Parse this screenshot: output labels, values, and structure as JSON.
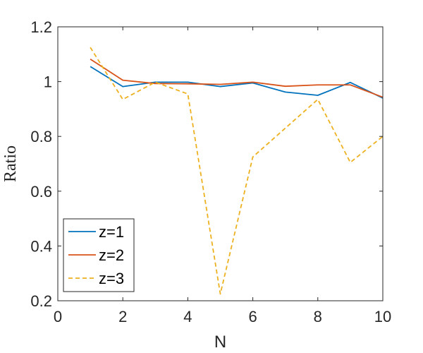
{
  "chart_data": {
    "type": "line",
    "xlabel": "N",
    "ylabel": "Ratio",
    "xlim": [
      0,
      10
    ],
    "ylim": [
      0.2,
      1.2
    ],
    "xticks": [
      0,
      2,
      4,
      6,
      8,
      10
    ],
    "yticks": [
      0.2,
      0.4,
      0.6,
      0.8,
      1,
      1.2
    ],
    "xtick_labels": [
      "0",
      "2",
      "4",
      "6",
      "8",
      "10"
    ],
    "ytick_labels": [
      "0.2",
      "0.4",
      "0.6",
      "0.8",
      "1",
      "1.2"
    ],
    "grid": false,
    "legend_position": "bottom-left",
    "series": [
      {
        "name": "z=1",
        "color": "#0072BD",
        "style": "solid",
        "x": [
          1,
          2,
          3,
          4,
          5,
          6,
          7,
          8,
          9,
          10
        ],
        "y": [
          1.055,
          0.982,
          0.998,
          0.998,
          0.982,
          0.995,
          0.962,
          0.95,
          0.997,
          0.94
        ]
      },
      {
        "name": "z=2",
        "color": "#D95319",
        "style": "solid",
        "x": [
          1,
          2,
          3,
          4,
          5,
          6,
          7,
          8,
          9,
          10
        ],
        "y": [
          1.082,
          1.005,
          0.993,
          0.992,
          0.99,
          0.998,
          0.983,
          0.988,
          0.988,
          0.943
        ]
      },
      {
        "name": "z=3",
        "color": "#EDB120",
        "style": "dashed",
        "x": [
          1,
          2,
          3,
          4,
          5,
          6,
          7,
          8,
          9,
          10
        ],
        "y": [
          1.125,
          0.935,
          0.998,
          0.955,
          0.225,
          0.725,
          0.83,
          0.935,
          0.705,
          0.8
        ]
      }
    ]
  }
}
